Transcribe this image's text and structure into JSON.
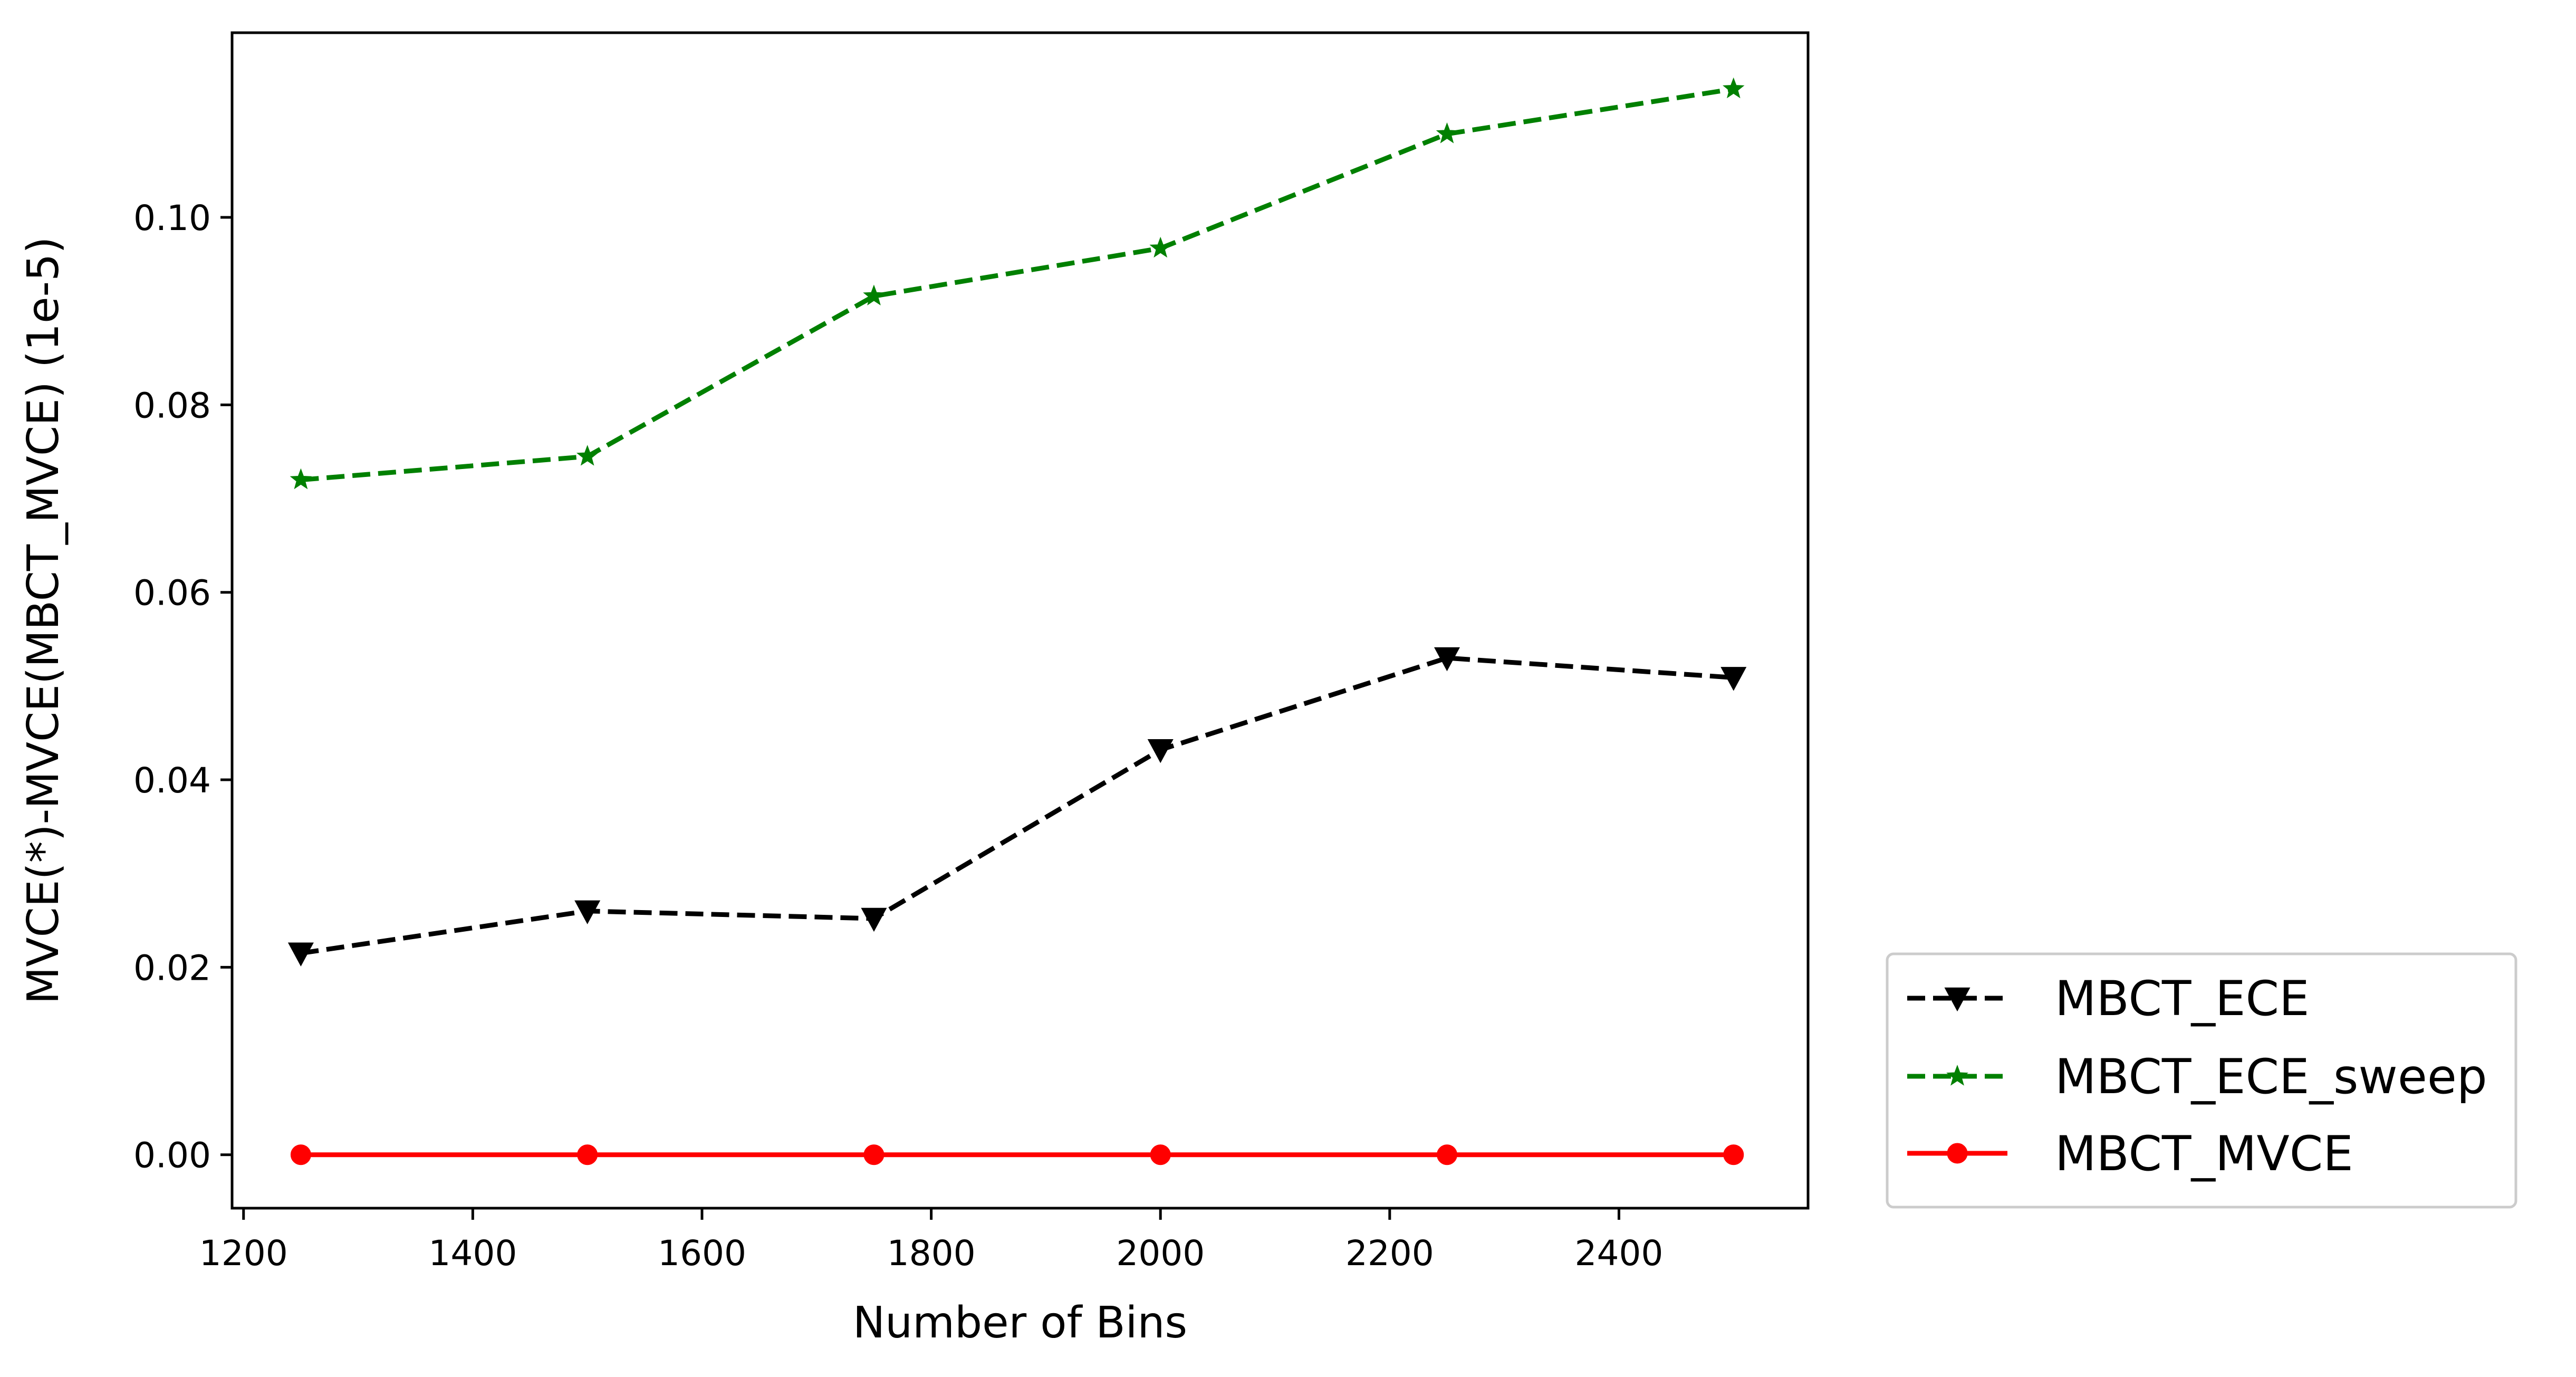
{
  "chart_data": {
    "type": "line",
    "xlabel": "Number of Bins",
    "ylabel": "MVCE(*)-MVCE(MBCT_MVCE) (1e-5)",
    "xlim": [
      1190,
      2565
    ],
    "ylim": [
      -0.0057,
      0.1197
    ],
    "x_ticks": [
      1200,
      1400,
      1600,
      1800,
      2000,
      2200,
      2400
    ],
    "y_ticks": [
      0.0,
      0.02,
      0.04,
      0.06,
      0.08,
      0.1
    ],
    "y_tick_labels": [
      "0.00",
      "0.02",
      "0.04",
      "0.06",
      "0.08",
      "0.10"
    ],
    "x": [
      1250,
      1500,
      1750,
      2000,
      2250,
      2500
    ],
    "grid": false,
    "legend_position": "outside-lower-right",
    "series": [
      {
        "name": "MBCT_ECE",
        "color": "#000000",
        "linestyle": "dashed",
        "marker": "triangle-down",
        "values": [
          0.0215,
          0.026,
          0.0252,
          0.0432,
          0.053,
          0.0509
        ]
      },
      {
        "name": "MBCT_ECE_sweep",
        "color": "#008000",
        "linestyle": "dashed",
        "marker": "star",
        "values": [
          0.072,
          0.0745,
          0.0916,
          0.0967,
          0.1089,
          0.1137
        ]
      },
      {
        "name": "MBCT_MVCE",
        "color": "#ff0000",
        "linestyle": "solid",
        "marker": "circle",
        "values": [
          0.0,
          0.0,
          0.0,
          0.0,
          0.0,
          0.0
        ]
      }
    ]
  }
}
